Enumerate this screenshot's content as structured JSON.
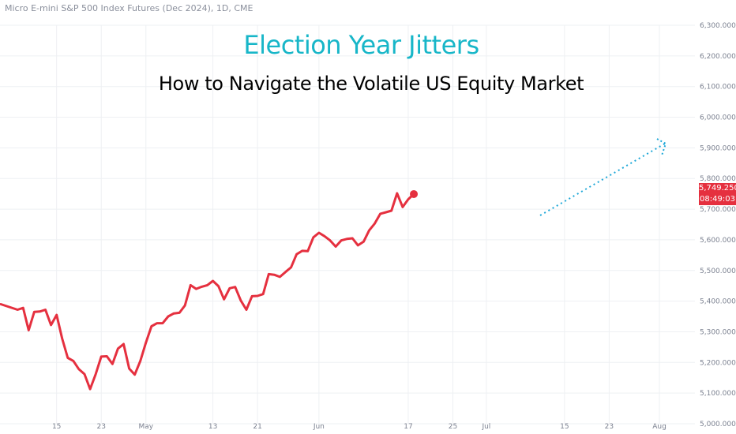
{
  "header": {
    "symbol": "Micro E-mini S&P 500 Index Futures (Dec 2024), 1D, CME"
  },
  "title": "Election Year Jitters",
  "subtitle": "How to Navigate the Volatile US Equity Market",
  "price_badge": {
    "price": "5,749.250",
    "countdown": "08:49:03"
  },
  "colors": {
    "line": "#e5303f",
    "title": "#17b6c8",
    "projection": "#1fa8d8",
    "grid": "#eef0f3"
  },
  "chart_data": {
    "type": "line",
    "title": "Election Year Jitters",
    "ylim": [
      5000,
      6300
    ],
    "y_ticks": [
      "5,000.000",
      "5,100.000",
      "5,200.000",
      "5,300.000",
      "5,400.000",
      "5,500.000",
      "5,600.000",
      "5,700.000",
      "5,800.000",
      "5,900.000",
      "6,000.000",
      "6,100.000",
      "6,200.000",
      "6,300.000"
    ],
    "y_tick_values": [
      5000,
      5100,
      5200,
      5300,
      5400,
      5500,
      5600,
      5700,
      5800,
      5900,
      6000,
      6100,
      6200,
      6300
    ],
    "x_ticks": [
      {
        "label": "15",
        "date": "2024-04-15"
      },
      {
        "label": "23",
        "date": "2024-04-23"
      },
      {
        "label": "May",
        "date": "2024-05-01"
      },
      {
        "label": "13",
        "date": "2024-05-13"
      },
      {
        "label": "21",
        "date": "2024-05-21"
      },
      {
        "label": "Jun",
        "date": "2024-06-01"
      },
      {
        "label": "17",
        "date": "2024-06-17"
      },
      {
        "label": "25",
        "date": "2024-06-25"
      },
      {
        "label": "Jul",
        "date": "2024-07-01"
      },
      {
        "label": "15",
        "date": "2024-07-15"
      },
      {
        "label": "23",
        "date": "2024-07-23"
      },
      {
        "label": "Aug",
        "date": "2024-08-01"
      }
    ],
    "series": [
      {
        "points": [
          {
            "date": "2024-04-05",
            "value": 5390
          },
          {
            "date": "2024-04-08",
            "value": 5372
          },
          {
            "date": "2024-04-09",
            "value": 5378
          },
          {
            "date": "2024-04-10",
            "value": 5305
          },
          {
            "date": "2024-04-11",
            "value": 5365
          },
          {
            "date": "2024-04-12",
            "value": 5366
          },
          {
            "date": "2024-04-13",
            "value": 5372
          },
          {
            "date": "2024-04-14",
            "value": 5322
          },
          {
            "date": "2024-04-15",
            "value": 5355
          },
          {
            "date": "2024-04-16",
            "value": 5278
          },
          {
            "date": "2024-04-17",
            "value": 5215
          },
          {
            "date": "2024-04-18",
            "value": 5205
          },
          {
            "date": "2024-04-19",
            "value": 5178
          },
          {
            "date": "2024-04-20",
            "value": 5162
          },
          {
            "date": "2024-04-21",
            "value": 5113
          },
          {
            "date": "2024-04-22",
            "value": 5162
          },
          {
            "date": "2024-04-23",
            "value": 5219
          },
          {
            "date": "2024-04-24",
            "value": 5220
          },
          {
            "date": "2024-04-25",
            "value": 5195
          },
          {
            "date": "2024-04-26",
            "value": 5245
          },
          {
            "date": "2024-04-27",
            "value": 5260
          },
          {
            "date": "2024-04-28",
            "value": 5180
          },
          {
            "date": "2024-04-29",
            "value": 5160
          },
          {
            "date": "2024-04-30",
            "value": 5205
          },
          {
            "date": "2024-05-01",
            "value": 5265
          },
          {
            "date": "2024-05-02",
            "value": 5318
          },
          {
            "date": "2024-05-03",
            "value": 5328
          },
          {
            "date": "2024-05-04",
            "value": 5328
          },
          {
            "date": "2024-05-05",
            "value": 5350
          },
          {
            "date": "2024-05-06",
            "value": 5360
          },
          {
            "date": "2024-05-07",
            "value": 5362
          },
          {
            "date": "2024-05-08",
            "value": 5386
          },
          {
            "date": "2024-05-09",
            "value": 5452
          },
          {
            "date": "2024-05-10",
            "value": 5440
          },
          {
            "date": "2024-05-11",
            "value": 5447
          },
          {
            "date": "2024-05-12",
            "value": 5452
          },
          {
            "date": "2024-05-13",
            "value": 5466
          },
          {
            "date": "2024-05-14",
            "value": 5449
          },
          {
            "date": "2024-05-15",
            "value": 5406
          },
          {
            "date": "2024-05-16",
            "value": 5442
          },
          {
            "date": "2024-05-17",
            "value": 5446
          },
          {
            "date": "2024-05-18",
            "value": 5402
          },
          {
            "date": "2024-05-19",
            "value": 5372
          },
          {
            "date": "2024-05-20",
            "value": 5416
          },
          {
            "date": "2024-05-21",
            "value": 5417
          },
          {
            "date": "2024-05-22",
            "value": 5423
          },
          {
            "date": "2024-05-23",
            "value": 5488
          },
          {
            "date": "2024-05-24",
            "value": 5486
          },
          {
            "date": "2024-05-25",
            "value": 5479
          },
          {
            "date": "2024-05-26",
            "value": 5495
          },
          {
            "date": "2024-05-27",
            "value": 5510
          },
          {
            "date": "2024-05-28",
            "value": 5553
          },
          {
            "date": "2024-05-29",
            "value": 5564
          },
          {
            "date": "2024-05-30",
            "value": 5563
          },
          {
            "date": "2024-05-31",
            "value": 5608
          },
          {
            "date": "2024-06-01",
            "value": 5623
          },
          {
            "date": "2024-06-02",
            "value": 5612
          },
          {
            "date": "2024-06-03",
            "value": 5598
          },
          {
            "date": "2024-06-04",
            "value": 5578
          },
          {
            "date": "2024-06-05",
            "value": 5598
          },
          {
            "date": "2024-06-06",
            "value": 5603
          },
          {
            "date": "2024-06-07",
            "value": 5605
          },
          {
            "date": "2024-06-08",
            "value": 5582
          },
          {
            "date": "2024-06-09",
            "value": 5594
          },
          {
            "date": "2024-06-10",
            "value": 5631
          },
          {
            "date": "2024-06-11",
            "value": 5653
          },
          {
            "date": "2024-06-12",
            "value": 5685
          },
          {
            "date": "2024-06-13",
            "value": 5690
          },
          {
            "date": "2024-06-14",
            "value": 5695
          },
          {
            "date": "2024-06-15",
            "value": 5752
          },
          {
            "date": "2024-06-16",
            "value": 5707
          },
          {
            "date": "2024-06-17",
            "value": 5732
          },
          {
            "date": "2024-06-18",
            "value": 5749.25
          }
        ]
      }
    ]
  }
}
